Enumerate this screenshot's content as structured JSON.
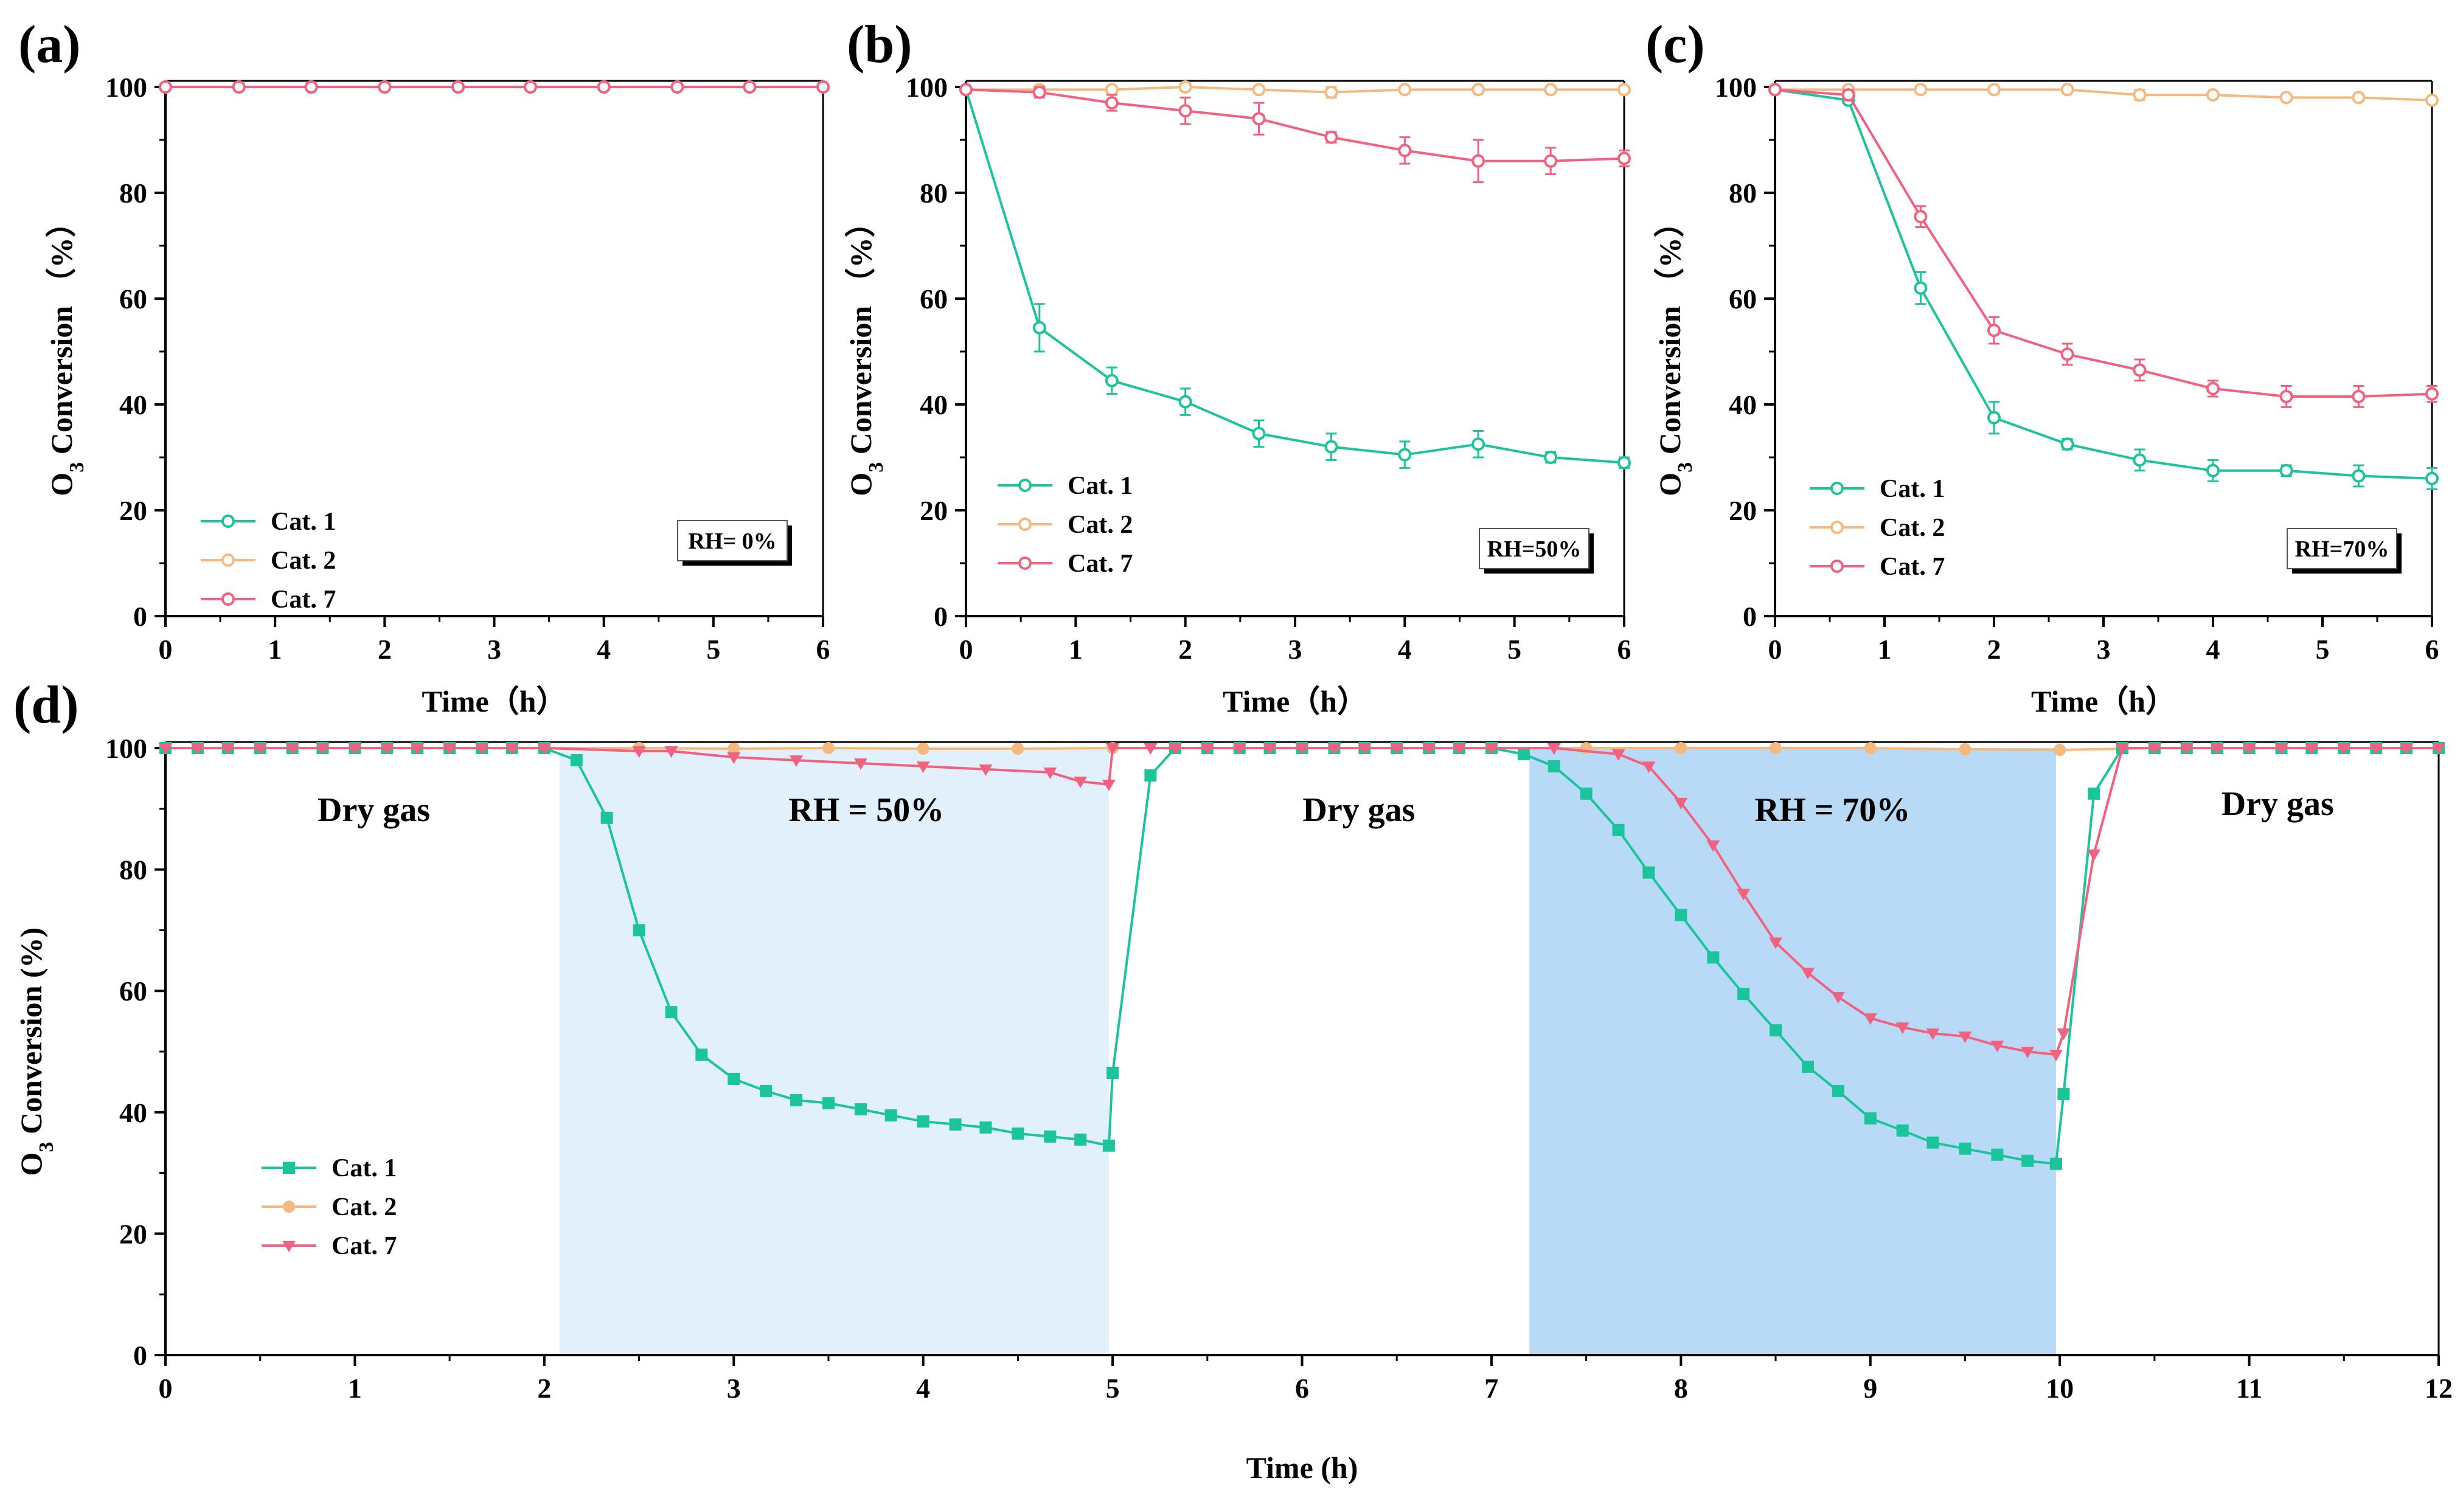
{
  "colors": {
    "cat1": "#1bc49a",
    "cat2": "#f4b97f",
    "cat7": "#f0627f",
    "band50": "#e1f0fb",
    "band70": "#b8daf7",
    "blue_text": "#2b8ae0"
  },
  "chart_data": [
    {
      "panel": "(a)",
      "type": "line",
      "xlabel": "Time（h）",
      "ylabel_prefix": "O",
      "ylabel_sub": "3",
      "ylabel_rest": " Conversion （%）",
      "xlim": [
        0,
        6
      ],
      "ylim": [
        0,
        100
      ],
      "xticks": [
        "0",
        "1",
        "2",
        "3",
        "4",
        "5",
        "6"
      ],
      "yticks": [
        "0",
        "20",
        "40",
        "60",
        "80",
        "100"
      ],
      "annotation": "RH= 0%",
      "legend": [
        "Cat. 1",
        "Cat. 2",
        "Cat. 7"
      ],
      "x": [
        0,
        0.67,
        1.33,
        2,
        2.67,
        3.33,
        4,
        4.67,
        5.33,
        6
      ],
      "series": [
        {
          "name": "Cat. 1",
          "values": [
            100,
            100,
            100,
            100,
            100,
            100,
            100,
            100,
            100,
            100
          ],
          "errors": [
            0,
            0,
            0,
            0,
            0,
            0,
            0,
            0,
            0,
            0
          ]
        },
        {
          "name": "Cat. 2",
          "values": [
            100,
            100,
            100,
            100,
            100,
            100,
            100,
            100,
            100,
            100
          ],
          "errors": [
            0,
            0,
            0,
            0,
            0,
            0,
            0,
            0,
            0,
            0
          ]
        },
        {
          "name": "Cat. 7",
          "values": [
            100,
            100,
            100,
            100,
            100,
            100,
            100,
            100,
            100,
            100
          ],
          "errors": [
            0,
            0,
            0,
            0,
            0,
            0,
            0,
            0,
            0,
            0
          ]
        }
      ]
    },
    {
      "panel": "(b)",
      "type": "line",
      "xlabel": "Time（h）",
      "ylabel_prefix": "O",
      "ylabel_sub": "3",
      "ylabel_rest": " Conversion （%）",
      "xlim": [
        0,
        6
      ],
      "ylim": [
        0,
        100
      ],
      "xticks": [
        "0",
        "1",
        "2",
        "3",
        "4",
        "5",
        "6"
      ],
      "yticks": [
        "0",
        "20",
        "40",
        "60",
        "80",
        "100"
      ],
      "annotation": "RH=50%",
      "legend": [
        "Cat. 1",
        "Cat. 2",
        "Cat. 7"
      ],
      "x": [
        0,
        0.67,
        1.33,
        2,
        2.67,
        3.33,
        4,
        4.67,
        5.33,
        6
      ],
      "series": [
        {
          "name": "Cat. 1",
          "values": [
            99.5,
            54.5,
            44.5,
            40.5,
            34.5,
            32,
            30.5,
            32.5,
            30,
            29
          ],
          "errors": [
            0,
            4.5,
            2.5,
            2.5,
            2.5,
            2.5,
            2.5,
            2.5,
            1,
            1
          ]
        },
        {
          "name": "Cat. 2",
          "values": [
            99.5,
            99.5,
            99.5,
            100,
            99.5,
            99,
            99.5,
            99.5,
            99.5,
            99.5
          ],
          "errors": [
            0,
            0.5,
            0.5,
            0.5,
            0.5,
            1,
            0.5,
            0.5,
            0.5,
            0.5
          ]
        },
        {
          "name": "Cat. 7",
          "values": [
            99.5,
            99,
            97,
            95.5,
            94,
            90.5,
            88,
            86,
            86,
            86.5
          ],
          "errors": [
            0,
            1,
            1.5,
            2.5,
            3,
            1,
            2.5,
            4,
            2.5,
            1.5
          ]
        }
      ]
    },
    {
      "panel": "(c)",
      "type": "line",
      "xlabel": "Time（h）",
      "ylabel_prefix": "O",
      "ylabel_sub": "3",
      "ylabel_rest": " Conversion （%）",
      "xlim": [
        0,
        6
      ],
      "ylim": [
        0,
        100
      ],
      "xticks": [
        "0",
        "1",
        "2",
        "3",
        "4",
        "5",
        "6"
      ],
      "yticks": [
        "0",
        "20",
        "40",
        "60",
        "80",
        "100"
      ],
      "annotation": "RH=70%",
      "legend": [
        "Cat. 1",
        "Cat. 2",
        "Cat. 7"
      ],
      "x": [
        0,
        0.67,
        1.33,
        2,
        2.67,
        3.33,
        4,
        4.67,
        5.33,
        6
      ],
      "series": [
        {
          "name": "Cat. 1",
          "values": [
            99.5,
            97.5,
            62,
            37.5,
            32.5,
            29.5,
            27.5,
            27.5,
            26.5,
            26
          ],
          "errors": [
            0,
            0.5,
            3,
            3,
            1,
            2,
            2,
            1,
            2,
            2
          ]
        },
        {
          "name": "Cat. 2",
          "values": [
            99.5,
            99.5,
            99.5,
            99.5,
            99.5,
            98.5,
            98.5,
            98,
            98,
            97.5
          ],
          "errors": [
            0,
            0.5,
            0.5,
            0.5,
            0.5,
            1,
            0.5,
            0.5,
            0.5,
            0.5
          ]
        },
        {
          "name": "Cat. 7",
          "values": [
            99.5,
            98.5,
            75.5,
            54,
            49.5,
            46.5,
            43,
            41.5,
            41.5,
            42
          ],
          "errors": [
            0,
            1,
            2,
            2.5,
            2,
            2,
            1.5,
            2,
            2,
            1.5
          ]
        }
      ]
    },
    {
      "panel": "(d)",
      "type": "line",
      "xlabel": "Time (h)",
      "ylabel_prefix": "O",
      "ylabel_sub": "3",
      "ylabel_rest": " Conversion (%)",
      "xlim": [
        0,
        12
      ],
      "ylim": [
        0,
        100
      ],
      "xticks": [
        "0",
        "1",
        "2",
        "3",
        "4",
        "5",
        "6",
        "7",
        "8",
        "9",
        "10",
        "11",
        "12"
      ],
      "yticks": [
        "0",
        "20",
        "40",
        "60",
        "80",
        "100"
      ],
      "legend": [
        "Cat. 1",
        "Cat. 2",
        "Cat. 7"
      ],
      "regions": [
        {
          "label": "Dry gas",
          "x": 1.1,
          "y": 88
        },
        {
          "label": "RH = 50%",
          "x": 3.7,
          "y": 88,
          "band": [
            2.08,
            4.98
          ],
          "shade": "band50"
        },
        {
          "label": "Dry gas",
          "x": 6.3,
          "y": 88
        },
        {
          "label": "RH = 70%",
          "x": 8.8,
          "y": 88,
          "band": [
            7.2,
            9.98
          ],
          "shade": "band70"
        },
        {
          "label": "Dry gas",
          "x": 11.15,
          "y": 89
        }
      ],
      "series": [
        {
          "name": "Cat. 1",
          "x": [
            0,
            0.17,
            0.33,
            0.5,
            0.67,
            0.83,
            1,
            1.17,
            1.33,
            1.5,
            1.67,
            1.83,
            2,
            2.17,
            2.33,
            2.5,
            2.67,
            2.83,
            3,
            3.17,
            3.33,
            3.5,
            3.67,
            3.83,
            4,
            4.17,
            4.33,
            4.5,
            4.67,
            4.83,
            4.98,
            5.0,
            5.2,
            5.33,
            5.5,
            5.67,
            5.83,
            6,
            6.17,
            6.33,
            6.5,
            6.67,
            6.83,
            7,
            7.17,
            7.33,
            7.5,
            7.67,
            7.83,
            8,
            8.17,
            8.33,
            8.5,
            8.67,
            8.83,
            9,
            9.17,
            9.33,
            9.5,
            9.67,
            9.83,
            9.98,
            10.02,
            10.18,
            10.33,
            10.5,
            10.67,
            10.83,
            11,
            11.17,
            11.33,
            11.5,
            11.67,
            11.83,
            12
          ],
          "values": [
            100,
            100,
            100,
            100,
            100,
            100,
            100,
            100,
            100,
            100,
            100,
            100,
            100,
            98,
            88.5,
            70,
            56.5,
            49.5,
            45.5,
            43.5,
            42,
            41.5,
            40.5,
            39.5,
            38.5,
            38,
            37.5,
            36.5,
            36,
            35.5,
            34.5,
            46.5,
            95.5,
            100,
            100,
            100,
            100,
            100,
            100,
            100,
            100,
            100,
            100,
            100,
            99,
            97,
            92.5,
            86.5,
            79.5,
            72.5,
            65.5,
            59.5,
            53.5,
            47.5,
            43.5,
            39,
            37,
            35,
            34,
            33,
            32,
            31.5,
            43,
            92.5,
            100,
            100,
            100,
            100,
            100,
            100,
            100,
            100,
            100,
            100,
            100
          ]
        },
        {
          "name": "Cat. 2",
          "x": [
            0,
            0.5,
            1,
            1.5,
            2,
            2.5,
            3,
            3.5,
            4,
            4.5,
            5,
            5.5,
            6,
            6.5,
            7,
            7.5,
            8,
            8.5,
            9,
            9.5,
            10,
            10.5,
            11,
            11.5,
            12
          ],
          "values": [
            100,
            100,
            100,
            100,
            100,
            100,
            99.9,
            100,
            99.9,
            99.9,
            100,
            100,
            100,
            100,
            100,
            100,
            100,
            100,
            100,
            99.8,
            99.7,
            100,
            100,
            100,
            100
          ]
        },
        {
          "name": "Cat. 7",
          "x": [
            0,
            0.17,
            0.33,
            0.5,
            0.67,
            0.83,
            1,
            1.17,
            1.33,
            1.5,
            1.67,
            1.83,
            2,
            2.5,
            2.67,
            3,
            3.33,
            3.67,
            4,
            4.33,
            4.67,
            4.83,
            4.98,
            5.0,
            5.2,
            5.33,
            5.5,
            5.67,
            5.83,
            6,
            6.17,
            6.33,
            6.5,
            6.67,
            6.83,
            7,
            7.33,
            7.67,
            7.83,
            8,
            8.17,
            8.33,
            8.5,
            8.67,
            8.83,
            9,
            9.17,
            9.33,
            9.5,
            9.67,
            9.83,
            9.98,
            10.02,
            10.18,
            10.33,
            10.5,
            10.67,
            10.83,
            11,
            11.17,
            11.33,
            11.5,
            11.67,
            11.83,
            12
          ],
          "values": [
            100,
            100,
            100,
            100,
            100,
            100,
            100,
            100,
            100,
            100,
            100,
            100,
            100,
            99.5,
            99.5,
            98.5,
            98,
            97.5,
            97,
            96.5,
            96,
            94.5,
            94,
            100,
            100,
            100,
            100,
            100,
            100,
            100,
            100,
            100,
            100,
            100,
            100,
            100,
            100,
            99,
            97,
            91,
            84,
            76,
            68,
            63,
            59,
            55.5,
            54,
            53,
            52.5,
            51,
            50,
            49.5,
            53,
            82.5,
            100,
            100,
            100,
            100,
            100,
            100,
            100,
            100,
            100,
            100,
            100
          ]
        }
      ]
    }
  ]
}
